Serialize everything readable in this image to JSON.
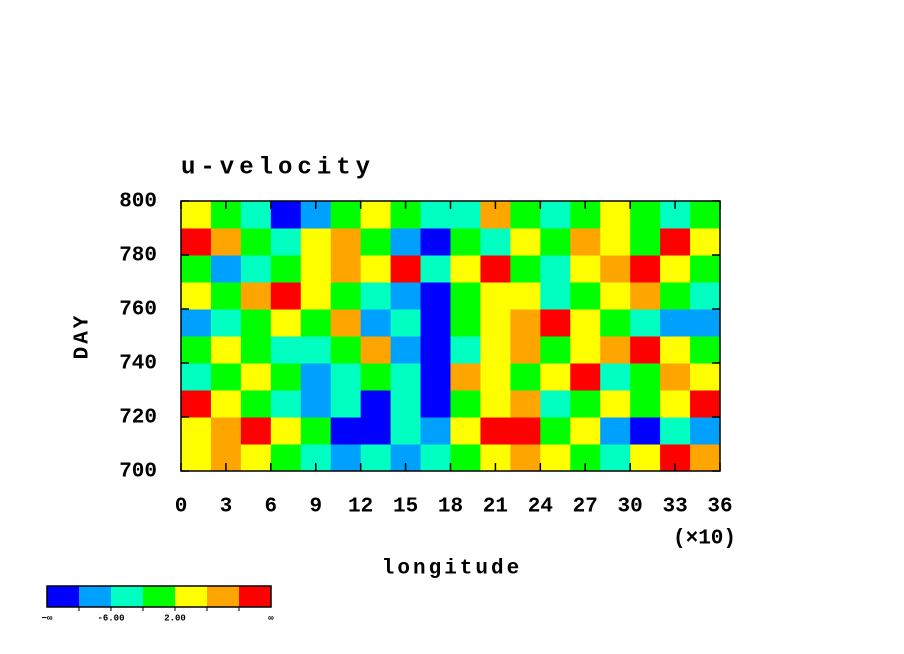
{
  "chart_data": {
    "type": "heatmap",
    "title": "u-velocity",
    "xlabel": "longitude",
    "ylabel": "DAY",
    "x_multiplier": "(×10)",
    "xlim": [
      0,
      36
    ],
    "xticks": [
      0,
      3,
      6,
      9,
      12,
      15,
      18,
      21,
      24,
      27,
      30,
      33,
      36
    ],
    "ylim": [
      700,
      800
    ],
    "yticks": [
      700,
      720,
      740,
      760,
      780,
      800
    ],
    "x": [
      1,
      3,
      5,
      7,
      9,
      11,
      13,
      15,
      17,
      19,
      21,
      23,
      25,
      27,
      29,
      31,
      33,
      35
    ],
    "y": [
      705,
      715,
      725,
      735,
      745,
      755,
      765,
      775,
      785,
      795
    ],
    "z": [
      [
        4,
        8,
        4,
        0,
        -4,
        -8,
        -4,
        -8,
        -4,
        0,
        4,
        8,
        4,
        0,
        -4,
        4,
        12,
        8
      ],
      [
        4,
        8,
        12,
        4,
        0,
        -12,
        -12,
        -4,
        -8,
        4,
        12,
        12,
        0,
        4,
        -8,
        -12,
        -4,
        -8
      ],
      [
        12,
        4,
        0,
        -4,
        -8,
        -4,
        -12,
        -4,
        -12,
        0,
        4,
        8,
        -4,
        0,
        4,
        0,
        4,
        12
      ],
      [
        -4,
        0,
        4,
        0,
        -8,
        -4,
        0,
        -4,
        -12,
        8,
        4,
        0,
        4,
        12,
        -4,
        0,
        8,
        4
      ],
      [
        0,
        4,
        0,
        -4,
        -4,
        0,
        8,
        -8,
        -12,
        -4,
        4,
        8,
        0,
        4,
        8,
        12,
        4,
        0
      ],
      [
        -8,
        -4,
        0,
        4,
        0,
        8,
        -8,
        -4,
        -12,
        0,
        4,
        8,
        12,
        4,
        0,
        -4,
        -8,
        -8
      ],
      [
        4,
        0,
        8,
        12,
        4,
        0,
        -4,
        -8,
        -12,
        0,
        4,
        4,
        -4,
        0,
        4,
        8,
        0,
        -4
      ],
      [
        0,
        -8,
        -4,
        0,
        4,
        8,
        4,
        12,
        -4,
        4,
        12,
        0,
        -4,
        4,
        8,
        12,
        4,
        0
      ],
      [
        12,
        8,
        0,
        -4,
        4,
        8,
        0,
        -8,
        -12,
        0,
        -4,
        4,
        0,
        8,
        4,
        0,
        12,
        4
      ],
      [
        4,
        0,
        -4,
        -12,
        -8,
        0,
        4,
        0,
        -4,
        -4,
        8,
        0,
        -4,
        0,
        4,
        0,
        -4,
        0
      ]
    ],
    "colors": [
      "#0000ff",
      "#00a0ff",
      "#00ffc0",
      "#00ff00",
      "#ffff00",
      "#ffa500",
      "#ff0000"
    ],
    "levels": [
      -10,
      {
        "value": -6,
        "label": "-6.00"
      },
      -2,
      {
        "value": 2,
        "label": "2.00"
      },
      6,
      10
    ],
    "low_label": "−∞",
    "high_label": "∞"
  }
}
